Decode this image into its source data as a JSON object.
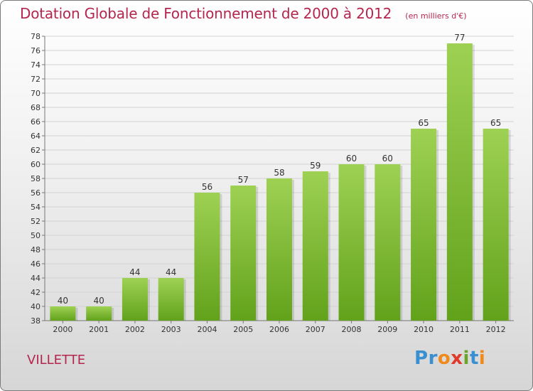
{
  "header": {
    "title": "Dotation Globale de Fonctionnement de 2000 à 2012",
    "subtitle": "(en milliers d'€)"
  },
  "commune": "VILLETTE",
  "logo": {
    "text": "Proxiti",
    "letters": [
      {
        "ch": "P",
        "color": "#3a8fd0"
      },
      {
        "ch": "r",
        "color": "#3a8fd0"
      },
      {
        "ch": "o",
        "color": "#f08a1c"
      },
      {
        "ch": "x",
        "color": "#e03a2a"
      },
      {
        "ch": "i",
        "color": "#6aa52a"
      },
      {
        "ch": "t",
        "color": "#3a8fd0"
      },
      {
        "ch": "i",
        "color": "#f08a1c"
      }
    ]
  },
  "chart_data": {
    "type": "bar",
    "title": "Dotation Globale de Fonctionnement de 2000 à 2012",
    "subtitle": "(en milliers d'€)",
    "categories": [
      "2000",
      "2001",
      "2002",
      "2003",
      "2004",
      "2005",
      "2006",
      "2007",
      "2008",
      "2009",
      "2010",
      "2011",
      "2012"
    ],
    "values": [
      40,
      40,
      44,
      44,
      56,
      57,
      58,
      59,
      60,
      60,
      65,
      77,
      65
    ],
    "ylim": [
      38,
      78
    ],
    "ytick_step": 2,
    "grid": true,
    "bar_color_top": "#9ed153",
    "bar_color_bottom": "#62a21b"
  }
}
